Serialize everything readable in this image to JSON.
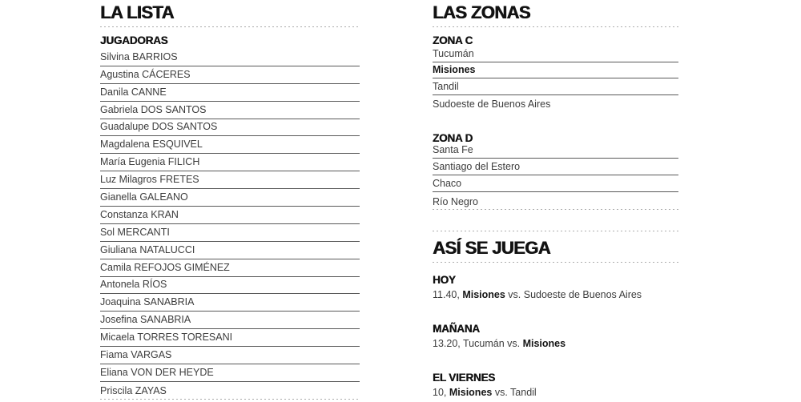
{
  "colors": {
    "background": "#ffffff",
    "heading": "#121212",
    "text": "#3c3c3c",
    "solid_rule": "#595959",
    "dotted_rule": "#ababab"
  },
  "left_column": {
    "title": "LA LISTA",
    "subtitle": "JUGADORAS",
    "players": [
      "Silvina BARRIOS",
      "Agustina CÁCERES",
      "Danila CANNE",
      "Gabriela DOS SANTOS",
      "Guadalupe DOS SANTOS",
      "Magdalena ESQUIVEL",
      "María Eugenia FILICH",
      "Luz Milagros FRETES",
      "Gianella GALEANO",
      "Constanza KRAN",
      "Sol MERCANTI",
      "Giuliana NATALUCCI",
      "Camila REFOJOS GIMÉNEZ",
      "Antonela RÍOS",
      "Joaquina SANABRIA",
      "Josefina SANABRIA",
      "Micaela TORRES TORESANI",
      "Fiama VARGAS",
      "Eliana VON DER HEYDE",
      "Priscila ZAYAS"
    ]
  },
  "right_column": {
    "zones_title": "LAS ZONAS",
    "zones": [
      {
        "label": "ZONA C",
        "teams": [
          {
            "name": "Tucumán",
            "bold": false,
            "divider": "solid"
          },
          {
            "name": "Misiones",
            "bold": true,
            "divider": "solid"
          },
          {
            "name": "Tandil",
            "bold": false,
            "divider": "solid"
          },
          {
            "name": "Sudoeste de Buenos Aires",
            "bold": false,
            "divider": "none"
          }
        ]
      },
      {
        "label": "ZONA D",
        "teams": [
          {
            "name": "Santa Fe",
            "bold": false,
            "divider": "solid"
          },
          {
            "name": "Santiago del Estero",
            "bold": false,
            "divider": "solid"
          },
          {
            "name": "Chaco",
            "bold": false,
            "divider": "solid"
          },
          {
            "name": "Río Negro",
            "bold": false,
            "divider": "dotted"
          }
        ]
      }
    ],
    "schedule_title": "ASÍ SE JUEGA",
    "matches": [
      {
        "day": "HOY",
        "segments": [
          {
            "text": "11.40, ",
            "bold": false
          },
          {
            "text": "Misiones",
            "bold": true
          },
          {
            "text": " vs. Sudoeste de Buenos Aires",
            "bold": false
          }
        ]
      },
      {
        "day": "MAÑANA",
        "segments": [
          {
            "text": "13.20, Tucumán vs. ",
            "bold": false
          },
          {
            "text": "Misiones",
            "bold": true
          }
        ]
      },
      {
        "day": "EL VIERNES",
        "segments": [
          {
            "text": "10, ",
            "bold": false
          },
          {
            "text": "Misiones",
            "bold": true
          },
          {
            "text": " vs. Tandil",
            "bold": false
          }
        ]
      }
    ]
  }
}
